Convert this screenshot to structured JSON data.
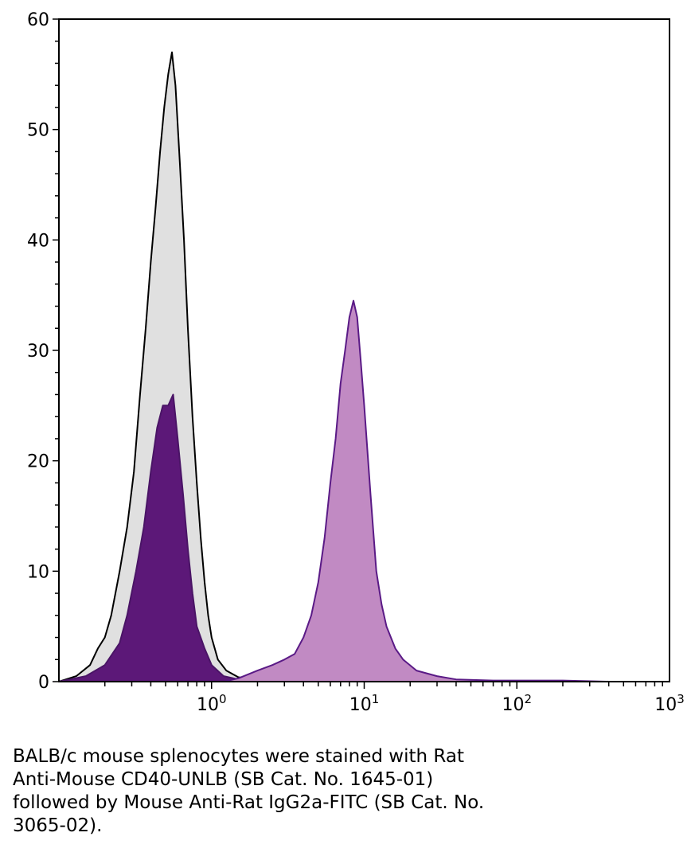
{
  "chart_data": {
    "type": "area",
    "x_scale": "log",
    "xlim": [
      0.1,
      1000
    ],
    "ylim": [
      0,
      60
    ],
    "y_ticks": [
      0,
      10,
      20,
      30,
      40,
      50,
      60
    ],
    "y_tick_labels": [
      "0",
      "10",
      "20",
      "30",
      "40",
      "50",
      "60"
    ],
    "x_ticks": [
      1,
      10,
      100,
      1000
    ],
    "x_tick_labels": [
      {
        "base": "10",
        "exp": "0"
      },
      {
        "base": "10",
        "exp": "1"
      },
      {
        "base": "10",
        "exp": "2"
      },
      {
        "base": "10",
        "exp": "3"
      }
    ],
    "grid": false,
    "legend": "none",
    "series": [
      {
        "fill": "#e0e0e0",
        "stroke": "#000000",
        "points": [
          [
            0.1,
            0
          ],
          [
            0.13,
            0.5
          ],
          [
            0.16,
            1.5
          ],
          [
            0.18,
            3
          ],
          [
            0.2,
            4
          ],
          [
            0.22,
            6
          ],
          [
            0.25,
            10
          ],
          [
            0.28,
            14
          ],
          [
            0.31,
            19
          ],
          [
            0.34,
            26
          ],
          [
            0.37,
            32
          ],
          [
            0.4,
            38
          ],
          [
            0.43,
            43
          ],
          [
            0.46,
            48
          ],
          [
            0.49,
            52
          ],
          [
            0.52,
            55
          ],
          [
            0.55,
            57
          ],
          [
            0.58,
            54
          ],
          [
            0.62,
            47
          ],
          [
            0.66,
            40
          ],
          [
            0.7,
            32
          ],
          [
            0.75,
            24
          ],
          [
            0.8,
            18
          ],
          [
            0.85,
            13
          ],
          [
            0.9,
            9
          ],
          [
            0.95,
            6
          ],
          [
            1.0,
            4
          ],
          [
            1.1,
            2
          ],
          [
            1.25,
            1
          ],
          [
            1.5,
            0.4
          ],
          [
            2.0,
            0.2
          ],
          [
            3.0,
            0
          ]
        ]
      },
      {
        "fill": "#5c1878",
        "stroke": "#4a1466",
        "points": [
          [
            0.1,
            0
          ],
          [
            0.15,
            0.5
          ],
          [
            0.2,
            1.5
          ],
          [
            0.25,
            3.5
          ],
          [
            0.28,
            6
          ],
          [
            0.32,
            10
          ],
          [
            0.36,
            14
          ],
          [
            0.4,
            19
          ],
          [
            0.44,
            23
          ],
          [
            0.48,
            25
          ],
          [
            0.52,
            25
          ],
          [
            0.56,
            26
          ],
          [
            0.6,
            22
          ],
          [
            0.65,
            17
          ],
          [
            0.7,
            12
          ],
          [
            0.75,
            8
          ],
          [
            0.8,
            5
          ],
          [
            0.9,
            3
          ],
          [
            1.0,
            1.5
          ],
          [
            1.2,
            0.5
          ],
          [
            1.5,
            0.2
          ],
          [
            2.0,
            0
          ]
        ]
      },
      {
        "fill": "#c18ac3",
        "stroke": "#5a1a86",
        "points": [
          [
            1.2,
            0
          ],
          [
            1.5,
            0.3
          ],
          [
            2.0,
            1
          ],
          [
            2.5,
            1.5
          ],
          [
            3.0,
            2
          ],
          [
            3.5,
            2.5
          ],
          [
            4.0,
            4
          ],
          [
            4.5,
            6
          ],
          [
            5.0,
            9
          ],
          [
            5.5,
            13
          ],
          [
            6.0,
            18
          ],
          [
            6.5,
            22
          ],
          [
            7.0,
            27
          ],
          [
            7.5,
            30
          ],
          [
            8.0,
            33
          ],
          [
            8.5,
            34.5
          ],
          [
            9.0,
            33
          ],
          [
            9.5,
            29
          ],
          [
            10.0,
            25
          ],
          [
            11.0,
            17
          ],
          [
            12.0,
            10
          ],
          [
            13.0,
            7
          ],
          [
            14.0,
            5
          ],
          [
            16.0,
            3
          ],
          [
            18.0,
            2
          ],
          [
            22.0,
            1
          ],
          [
            30.0,
            0.5
          ],
          [
            40.0,
            0.2
          ],
          [
            70.0,
            0.1
          ],
          [
            200.0,
            0.1
          ],
          [
            400.0,
            0
          ]
        ]
      }
    ],
    "caption_lines": [
      "BALB/c mouse splenocytes were stained with Rat",
      "Anti-Mouse CD40-UNLB (SB Cat. No. 1645-01)",
      "followed by Mouse Anti-Rat IgG2a-FITC (SB Cat. No.",
      "3065-02)."
    ]
  }
}
